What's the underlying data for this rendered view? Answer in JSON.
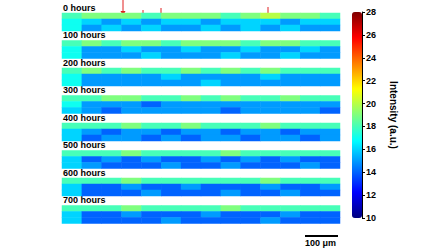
{
  "chart_data": {
    "type": "heatmap",
    "panels": [
      {
        "label": "0 hours",
        "cells": [
          [
            18,
            19,
            19,
            19,
            18,
            19,
            19,
            19,
            18,
            19,
            20,
            19,
            19,
            18
          ],
          [
            17,
            16,
            15,
            16,
            15,
            16,
            16,
            15,
            16,
            16,
            16,
            15,
            16,
            16
          ],
          [
            17,
            15,
            16,
            15,
            16,
            15,
            15,
            16,
            15,
            16,
            15,
            16,
            15,
            15
          ]
        ]
      },
      {
        "label": "100 hours",
        "cells": [
          [
            18,
            19,
            18,
            19,
            19,
            18,
            19,
            19,
            19,
            18,
            19,
            19,
            18,
            18
          ],
          [
            17,
            15,
            15,
            16,
            15,
            15,
            16,
            15,
            15,
            16,
            15,
            15,
            16,
            15
          ],
          [
            17,
            15,
            15,
            15,
            16,
            15,
            15,
            15,
            16,
            15,
            15,
            16,
            15,
            15
          ]
        ]
      },
      {
        "label": "200 hours",
        "cells": [
          [
            18,
            19,
            18,
            19,
            18,
            18,
            19,
            18,
            19,
            18,
            19,
            18,
            18,
            18
          ],
          [
            17,
            15,
            15,
            15,
            15,
            16,
            15,
            15,
            15,
            15,
            16,
            15,
            15,
            15
          ],
          [
            17,
            15,
            15,
            15,
            15,
            15,
            15,
            16,
            15,
            15,
            15,
            15,
            15,
            15
          ]
        ]
      },
      {
        "label": "300 hours",
        "cells": [
          [
            18,
            18,
            19,
            19,
            18,
            18,
            19,
            18,
            19,
            18,
            18,
            19,
            18,
            18
          ],
          [
            17,
            15,
            15,
            15,
            14,
            15,
            15,
            15,
            15,
            15,
            15,
            15,
            15,
            15
          ],
          [
            16,
            15,
            14,
            15,
            15,
            15,
            15,
            15,
            14,
            15,
            15,
            15,
            15,
            14
          ]
        ]
      },
      {
        "label": "400 hours",
        "cells": [
          [
            18,
            18,
            18,
            19,
            18,
            18,
            19,
            18,
            18,
            18,
            19,
            18,
            18,
            18
          ],
          [
            16,
            15,
            14,
            15,
            15,
            14,
            15,
            15,
            14,
            15,
            15,
            14,
            15,
            15
          ],
          [
            16,
            14,
            15,
            15,
            14,
            15,
            14,
            15,
            15,
            14,
            15,
            15,
            14,
            15
          ]
        ]
      },
      {
        "label": "500 hours",
        "cells": [
          [
            18,
            18,
            18,
            19,
            18,
            18,
            18,
            18,
            19,
            18,
            18,
            18,
            18,
            18
          ],
          [
            16,
            14,
            15,
            14,
            15,
            14,
            14,
            15,
            14,
            15,
            14,
            15,
            14,
            14
          ],
          [
            16,
            15,
            14,
            14,
            14,
            15,
            14,
            14,
            15,
            14,
            14,
            14,
            15,
            14
          ]
        ]
      },
      {
        "label": "600 hours",
        "cells": [
          [
            18,
            18,
            18,
            19,
            18,
            18,
            18,
            18,
            18,
            18,
            19,
            18,
            18,
            18
          ],
          [
            16,
            14,
            14,
            15,
            14,
            14,
            15,
            14,
            14,
            14,
            15,
            14,
            14,
            15
          ],
          [
            16,
            14,
            14,
            14,
            15,
            14,
            14,
            14,
            15,
            14,
            14,
            15,
            14,
            14
          ]
        ]
      },
      {
        "label": "700 hours",
        "cells": [
          [
            18,
            18,
            18,
            19,
            18,
            18,
            18,
            18,
            19,
            18,
            18,
            18,
            18,
            18
          ],
          [
            16,
            14,
            14,
            15,
            14,
            14,
            14,
            15,
            14,
            14,
            14,
            15,
            14,
            14
          ],
          [
            16,
            14,
            14,
            14,
            14,
            15,
            14,
            14,
            14,
            14,
            15,
            14,
            14,
            14
          ]
        ]
      }
    ],
    "colorbar": {
      "title": "Intensity (a.u.)",
      "range": [
        10,
        28
      ],
      "ticks": [
        10,
        12,
        14,
        16,
        18,
        20,
        22,
        24,
        26,
        28
      ]
    },
    "scale_bar": "100 μm"
  }
}
